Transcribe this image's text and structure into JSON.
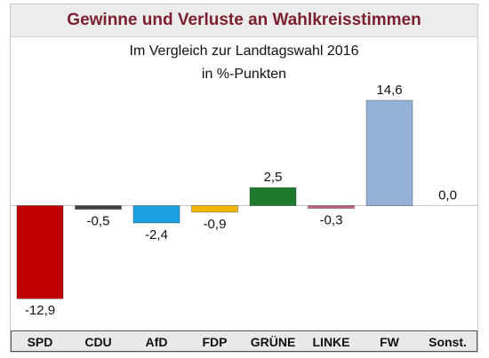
{
  "title": "Gewinne und Verluste an Wahlkreisstimmen",
  "subtitle_line1": "Im Vergleich zur Landtagswahl 2016",
  "subtitle_line2": "in %-Punkten",
  "chart_data": {
    "type": "bar",
    "categories": [
      "SPD",
      "CDU",
      "AfD",
      "FDP",
      "GRÜNE",
      "LINKE",
      "FW",
      "Sonst."
    ],
    "values": [
      -12.9,
      -0.5,
      -2.4,
      -0.9,
      2.5,
      -0.3,
      14.6,
      0.0
    ],
    "value_labels": [
      "-12,9",
      "-0,5",
      "-2,4",
      "-0,9",
      "2,5",
      "-0,3",
      "14,6",
      "0,0"
    ],
    "colors": [
      "#c00000",
      "#404040",
      "#1ba1e2",
      "#f0b800",
      "#1e7b2e",
      "#c0607a",
      "#95b3d7",
      "#ffffff"
    ],
    "title": "Gewinne und Verluste an Wahlkreisstimmen",
    "xlabel": "",
    "ylabel": "",
    "ylim": [
      -12.9,
      14.6
    ],
    "grid": false,
    "legend": "none"
  }
}
